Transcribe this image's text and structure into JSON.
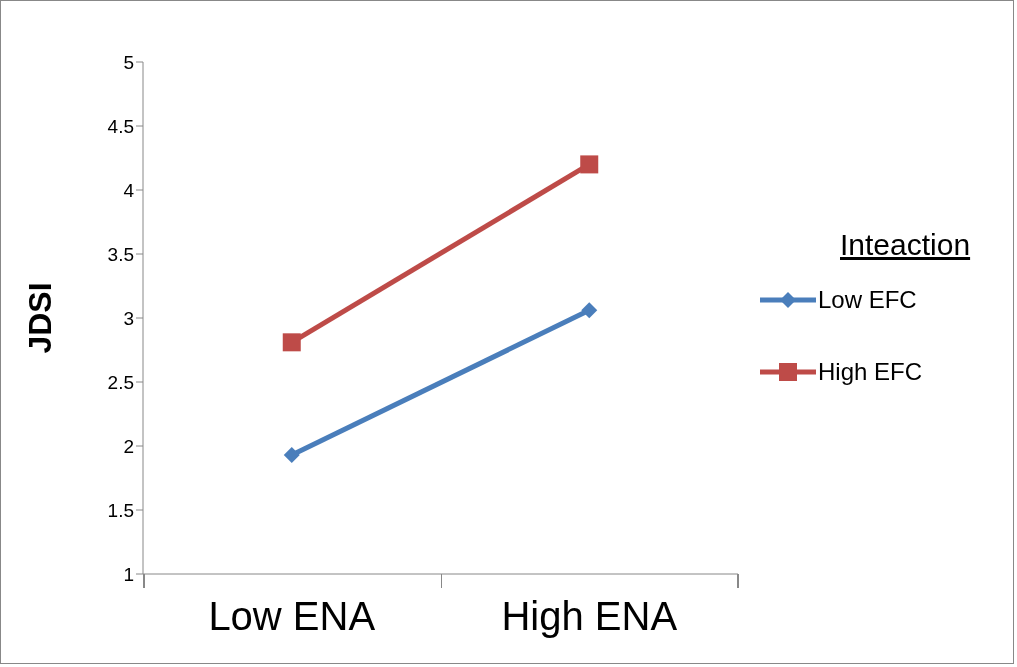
{
  "chart_data": {
    "type": "line",
    "ylabel": "JDSI",
    "legend_title": "Inteaction",
    "categories": [
      "Low ENA",
      "High ENA"
    ],
    "series": [
      {
        "name": "Low EFC",
        "color": "#4a7ebb",
        "values": [
          1.93,
          3.06
        ],
        "marker": "diamond"
      },
      {
        "name": "High EFC",
        "color": "#be4b48",
        "values": [
          2.81,
          4.2
        ],
        "marker": "square"
      }
    ],
    "ylim": [
      1,
      5
    ],
    "yticks": [
      1,
      1.5,
      2,
      2.5,
      3,
      3.5,
      4,
      4.5,
      5
    ],
    "legend": "right"
  }
}
